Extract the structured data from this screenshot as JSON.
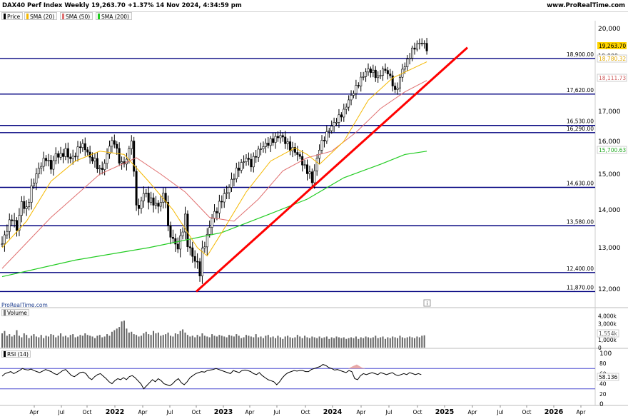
{
  "header": {
    "title": "DAX40 Perf Index Weekly 19,263.70 +1.37% 14 Nov 2024, 4:34:59 pm",
    "site": "www.ProRealTime.com"
  },
  "legend": [
    {
      "label": "Price",
      "color": "#000000"
    },
    {
      "label": "SMA (20)",
      "color": "#f5b800"
    },
    {
      "label": "SMA (50)",
      "color": "#e07070"
    },
    {
      "label": "SMA (200)",
      "color": "#22cc22"
    }
  ],
  "watermark": "ProRealTime.com",
  "info_icon": "info-icon",
  "chart_data": [
    {
      "type": "candlestick",
      "title": "DAX40 Perf Index Weekly",
      "ylim": [
        11700,
        20500
      ],
      "y_ticks": [
        12000,
        13000,
        14000,
        15000,
        16000,
        17000,
        20000
      ],
      "y_tick_labels": [
        "12,000",
        "13,000",
        "14,000",
        "15,000",
        "16,000",
        "17,000",
        "20,000"
      ],
      "y_tick_19000_label": "19,000",
      "support_levels": [
        {
          "value": 18900,
          "label": "18,900.00"
        },
        {
          "value": 17620,
          "label": "17,620.00"
        },
        {
          "value": 16530,
          "label": "16,530.00"
        },
        {
          "value": 16290,
          "label": "16,290.00"
        },
        {
          "value": 14630,
          "label": "14,630.00"
        },
        {
          "value": 13580,
          "label": "13,580.00"
        },
        {
          "value": 12400,
          "label": "12,400.00"
        },
        {
          "value": 11870,
          "label": "11,870.00"
        }
      ],
      "trendline": {
        "start": {
          "x": "2022-10",
          "y": 11870
        },
        "end": {
          "x": "2025-01",
          "y": 19300
        },
        "color": "#ff0000"
      },
      "last_values": [
        {
          "name": "Price",
          "value": "19,263.70",
          "bg": "#ffd400",
          "fg": "#000000"
        },
        {
          "name": "SMA (20)",
          "value": "18,780.32",
          "bg": "#ffffff",
          "fg": "#e0a800"
        },
        {
          "name": "SMA (50)",
          "value": "18,111.73",
          "bg": "#ffffff",
          "fg": "#d06060"
        },
        {
          "name": "SMA (200)",
          "value": "15,700.63",
          "bg": "#ffffff",
          "fg": "#22aa22"
        }
      ],
      "price_path": [
        [
          0,
          13100
        ],
        [
          2,
          13500
        ],
        [
          4,
          13800
        ],
        [
          6,
          13500
        ],
        [
          8,
          14200
        ],
        [
          10,
          14000
        ],
        [
          12,
          14600
        ],
        [
          14,
          15000
        ],
        [
          16,
          15300
        ],
        [
          18,
          15500
        ],
        [
          20,
          15200
        ],
        [
          22,
          15600
        ],
        [
          24,
          15550
        ],
        [
          26,
          15700
        ],
        [
          28,
          15450
        ],
        [
          30,
          15600
        ],
        [
          32,
          15900
        ],
        [
          34,
          15800
        ],
        [
          36,
          15500
        ],
        [
          38,
          15400
        ],
        [
          40,
          15100
        ],
        [
          42,
          15300
        ],
        [
          44,
          15900
        ],
        [
          46,
          16000
        ],
        [
          48,
          15400
        ],
        [
          50,
          15300
        ],
        [
          52,
          15700
        ],
        [
          53,
          16100
        ],
        [
          54,
          15000
        ],
        [
          55,
          14200
        ],
        [
          56,
          14000
        ],
        [
          58,
          14500
        ],
        [
          60,
          14300
        ],
        [
          62,
          14200
        ],
        [
          64,
          14100
        ],
        [
          66,
          14400
        ],
        [
          67,
          14300
        ],
        [
          68,
          13500
        ],
        [
          70,
          13200
        ],
        [
          72,
          13000
        ],
        [
          74,
          13500
        ],
        [
          75,
          13800
        ],
        [
          76,
          13100
        ],
        [
          78,
          12800
        ],
        [
          80,
          12600
        ],
        [
          81,
          12400
        ],
        [
          82,
          12900
        ],
        [
          84,
          13300
        ],
        [
          86,
          13800
        ],
        [
          88,
          14000
        ],
        [
          90,
          14300
        ],
        [
          92,
          14500
        ],
        [
          94,
          14800
        ],
        [
          96,
          15100
        ],
        [
          98,
          15300
        ],
        [
          100,
          15500
        ],
        [
          102,
          15300
        ],
        [
          104,
          15600
        ],
        [
          106,
          15800
        ],
        [
          108,
          15900
        ],
        [
          110,
          16000
        ],
        [
          112,
          16100
        ],
        [
          114,
          16200
        ],
        [
          116,
          16000
        ],
        [
          118,
          15800
        ],
        [
          120,
          15700
        ],
        [
          122,
          15500
        ],
        [
          124,
          15200
        ],
        [
          126,
          15000
        ],
        [
          127,
          14800
        ],
        [
          128,
          15100
        ],
        [
          130,
          15800
        ],
        [
          132,
          16100
        ],
        [
          134,
          16400
        ],
        [
          136,
          16600
        ],
        [
          138,
          16800
        ],
        [
          140,
          17000
        ],
        [
          142,
          17400
        ],
        [
          144,
          17700
        ],
        [
          146,
          18000
        ],
        [
          148,
          18300
        ],
        [
          150,
          18500
        ],
        [
          152,
          18400
        ],
        [
          154,
          18200
        ],
        [
          156,
          18500
        ],
        [
          158,
          18400
        ],
        [
          160,
          18000
        ],
        [
          161,
          17700
        ],
        [
          162,
          17900
        ],
        [
          164,
          18500
        ],
        [
          166,
          18800
        ],
        [
          168,
          19200
        ],
        [
          170,
          19400
        ],
        [
          172,
          19500
        ],
        [
          174,
          19263
        ]
      ],
      "sma20_path": [
        [
          0,
          13000
        ],
        [
          10,
          13700
        ],
        [
          20,
          14800
        ],
        [
          30,
          15400
        ],
        [
          40,
          15700
        ],
        [
          50,
          15600
        ],
        [
          60,
          14800
        ],
        [
          70,
          14000
        ],
        [
          80,
          13000
        ],
        [
          84,
          12800
        ],
        [
          90,
          13400
        ],
        [
          100,
          14500
        ],
        [
          110,
          15400
        ],
        [
          120,
          15800
        ],
        [
          125,
          15600
        ],
        [
          130,
          15300
        ],
        [
          140,
          16000
        ],
        [
          150,
          17400
        ],
        [
          160,
          18200
        ],
        [
          174,
          18780
        ]
      ],
      "sma50_path": [
        [
          0,
          12500
        ],
        [
          20,
          13800
        ],
        [
          40,
          15000
        ],
        [
          55,
          15500
        ],
        [
          65,
          15000
        ],
        [
          75,
          14500
        ],
        [
          85,
          13800
        ],
        [
          95,
          13700
        ],
        [
          105,
          14300
        ],
        [
          115,
          15100
        ],
        [
          125,
          15500
        ],
        [
          135,
          15700
        ],
        [
          145,
          16300
        ],
        [
          155,
          17100
        ],
        [
          165,
          17700
        ],
        [
          174,
          18111
        ]
      ],
      "sma200_path": [
        [
          0,
          12300
        ],
        [
          30,
          12700
        ],
        [
          60,
          13000
        ],
        [
          90,
          13400
        ],
        [
          110,
          13900
        ],
        [
          125,
          14300
        ],
        [
          140,
          14900
        ],
        [
          155,
          15300
        ],
        [
          165,
          15600
        ],
        [
          174,
          15700
        ]
      ]
    },
    {
      "type": "bar",
      "title": "Volume",
      "ylim": [
        0,
        4500
      ],
      "y_tick_labels": [
        "4,000k",
        "3,000k",
        "2,000k",
        "1,000k",
        "0"
      ],
      "last_value": "1,554k",
      "values": [
        1800,
        2100,
        1500,
        1700,
        1400,
        1600,
        2200,
        1500,
        1300,
        1800,
        1600,
        1200,
        1500,
        1700,
        1400,
        1300,
        1600,
        1200,
        1500,
        1400,
        1700,
        1600,
        1300,
        1500,
        1800,
        1400,
        1500,
        1300,
        1600,
        1700,
        1300,
        1400,
        1600,
        1500,
        1800,
        1600,
        1500,
        1400,
        1200,
        1500,
        1600,
        1300,
        1400,
        1700,
        1500,
        2000,
        2200,
        2400,
        2600,
        3300,
        3400,
        2400,
        1900,
        2000,
        1700,
        1600,
        1400,
        1500,
        1800,
        2000,
        1700,
        1600,
        2100,
        1800,
        1900,
        1500,
        1600,
        1700,
        1900,
        1500,
        1400,
        1800,
        1700,
        2100,
        2300,
        1900,
        1600,
        1400,
        1500,
        1300,
        1600,
        1400,
        1800,
        1500,
        1400,
        1300,
        1700,
        1500,
        1400,
        1600,
        1500,
        1400,
        1300,
        1600,
        1500,
        1400,
        1700,
        1500,
        1200,
        1300,
        1600,
        1500,
        1400,
        1300,
        1700,
        1300,
        1400,
        1200,
        1500,
        1600,
        1300,
        1400,
        1200,
        1500,
        1300,
        1100,
        1400,
        1500,
        1300,
        1200,
        1300,
        1600,
        1400,
        1200,
        1500,
        1300,
        1200,
        1400,
        1300,
        1200,
        1400,
        1200,
        1300,
        1400,
        1100,
        1300,
        1200,
        1400,
        1300,
        1200,
        1300,
        1100,
        1200,
        1300,
        1200,
        1400,
        1100,
        1300,
        1200,
        1400,
        1300,
        1200,
        1300,
        1500,
        1200,
        1300,
        1400,
        1100,
        1300,
        1200,
        1400,
        1300,
        1200,
        1500,
        1300,
        1200,
        1300,
        1400,
        1300,
        1200,
        1400,
        1300,
        1500,
        1554
      ]
    },
    {
      "type": "line",
      "title": "RSI (14)",
      "ylim": [
        0,
        100
      ],
      "y_tick_labels": [
        "100",
        "80",
        "60",
        "40",
        "20",
        "0"
      ],
      "levels": [
        70,
        30
      ],
      "last_value": "58.136",
      "values": [
        55,
        60,
        62,
        64,
        60,
        63,
        66,
        70,
        68,
        67,
        69,
        66,
        64,
        62,
        65,
        68,
        66,
        64,
        60,
        58,
        62,
        66,
        68,
        62,
        56,
        54,
        58,
        62,
        63,
        60,
        52,
        48,
        54,
        58,
        60,
        55,
        50,
        44,
        40,
        46,
        50,
        48,
        52,
        48,
        54,
        56,
        52,
        46,
        40,
        30,
        36,
        42,
        48,
        44,
        50,
        46,
        40,
        38,
        36,
        40,
        46,
        50,
        42,
        38,
        44,
        52,
        56,
        60,
        62,
        64,
        63,
        66,
        67,
        68,
        70,
        68,
        66,
        64,
        62,
        60,
        66,
        64,
        62,
        66,
        67,
        66,
        64,
        60,
        58,
        62,
        56,
        52,
        48,
        46,
        44,
        38,
        44,
        52,
        58,
        62,
        64,
        66,
        65,
        66,
        66,
        64,
        64,
        68,
        70,
        72,
        74,
        78,
        76,
        72,
        70,
        67,
        68,
        66,
        64,
        62,
        66,
        64,
        50,
        48,
        56,
        60,
        58,
        60,
        62,
        60,
        58,
        62,
        60,
        58,
        60,
        62,
        58,
        56,
        58,
        60,
        58,
        62,
        60,
        58,
        60,
        58
      ]
    }
  ],
  "x_axis": {
    "labels": [
      "Apr",
      "Jul",
      "Oct",
      "2022",
      "Apr",
      "Jul",
      "Oct",
      "2023",
      "Apr",
      "Jul",
      "Oct",
      "2024",
      "Apr",
      "Jul",
      "Oct",
      "2025",
      "Apr",
      "Jul",
      "Oct",
      "2026",
      "Apr"
    ],
    "bold": [
      "2022",
      "2023",
      "2024",
      "2025",
      "2026"
    ]
  }
}
